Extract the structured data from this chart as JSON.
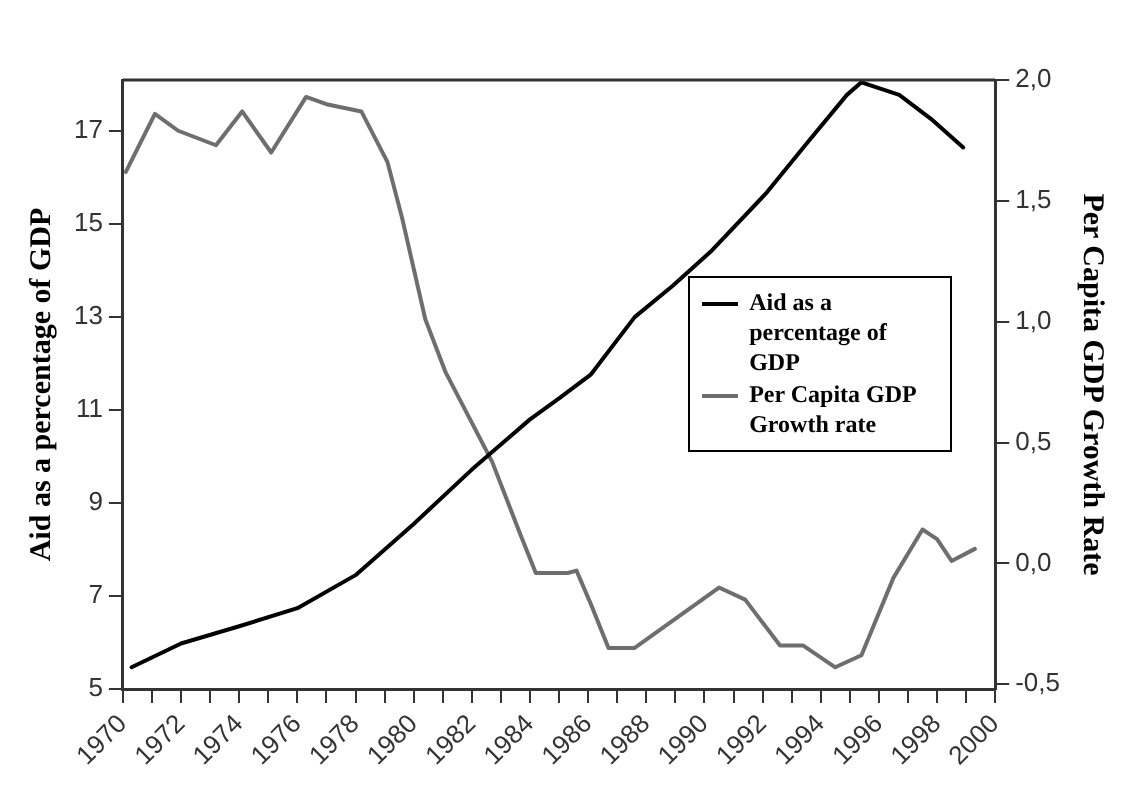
{
  "chart_data": {
    "type": "line",
    "ylabel": "Aid as a percentage of GDP",
    "y2label": "Per Capita GDP Growth Rate",
    "xlim": [
      1970,
      2000
    ],
    "xticks": [
      1970,
      {
        "value": 1971,
        "label": null
      },
      1972,
      {
        "value": 1973,
        "label": null
      },
      1974,
      {
        "value": 1975,
        "label": null
      },
      1976,
      {
        "value": 1977,
        "label": null
      },
      1978,
      {
        "value": 1979,
        "label": null
      },
      1980,
      {
        "value": 1981,
        "label": null
      },
      1982,
      {
        "value": 1983,
        "label": null
      },
      1984,
      {
        "value": 1985,
        "label": null
      },
      1986,
      {
        "value": 1987,
        "label": null
      },
      1988,
      {
        "value": 1989,
        "label": null
      },
      1990,
      {
        "value": 1991,
        "label": null
      },
      1992,
      {
        "value": 1993,
        "label": null
      },
      1994,
      {
        "value": 1995,
        "label": null
      },
      1996,
      {
        "value": 1997,
        "label": null
      },
      1998,
      {
        "value": 1999,
        "label": null
      },
      2000
    ],
    "ylim": [
      5,
      18.1
    ],
    "yticks": [
      5,
      7,
      9,
      11,
      13,
      15,
      17
    ],
    "y2lim": [
      -0.52,
      2.0
    ],
    "y2ticks": [
      {
        "value": -0.5,
        "label": "-0,5"
      },
      {
        "value": 0,
        "label": "0,0"
      },
      {
        "value": 0.5,
        "label": "0,5"
      },
      {
        "value": 1,
        "label": "1,0"
      },
      {
        "value": 1.5,
        "label": "1,5"
      },
      {
        "value": 2,
        "label": "2,0"
      }
    ],
    "grid": false,
    "legend": "right",
    "marker": "none",
    "line_style": "solid",
    "series": [
      {
        "name": "Aid as a percentage of GDP",
        "color": "#000000",
        "x": [
          1970.3,
          1972,
          1974,
          1976,
          1978,
          1980,
          1982,
          1984,
          1985,
          1986.1,
          1987.6,
          1988.9,
          1990.2,
          1992.1,
          1993.6,
          1994.9,
          1995.4,
          1996.7,
          1997.8,
          1998.9
        ],
        "values": [
          5.47,
          5.98,
          6.35,
          6.74,
          7.45,
          8.55,
          9.72,
          10.8,
          11.25,
          11.77,
          13.0,
          13.67,
          14.4,
          15.65,
          16.8,
          17.78,
          18.05,
          17.78,
          17.26,
          16.65
        ]
      },
      {
        "name": "Per Capita GDP Growth rate",
        "color": "#6e6e6e",
        "axis": "y2",
        "x": [
          1970.1,
          1971.1,
          1971.9,
          1973.2,
          1974.1,
          1975.1,
          1976.3,
          1977.0,
          1978.2,
          1979.1,
          1979.6,
          1980.4,
          1981.1,
          1982.7,
          1983.7,
          1984.2,
          1985.3,
          1985.6,
          1986.1,
          1986.7,
          1987.6,
          1990.5,
          1991.4,
          1992.6,
          1993.4,
          1994.5,
          1995.4,
          1996.5,
          1997.5,
          1998.0,
          1998.5,
          1999.3
        ],
        "values": [
          1.62,
          1.86,
          1.79,
          1.73,
          1.87,
          1.7,
          1.93,
          1.9,
          1.87,
          1.66,
          1.43,
          1.01,
          0.79,
          0.42,
          0.11,
          -0.04,
          -0.04,
          -0.03,
          -0.17,
          -0.35,
          -0.35,
          -0.1,
          -0.15,
          -0.34,
          -0.34,
          -0.43,
          -0.38,
          -0.06,
          0.14,
          0.1,
          0.01,
          0.06
        ]
      }
    ]
  }
}
